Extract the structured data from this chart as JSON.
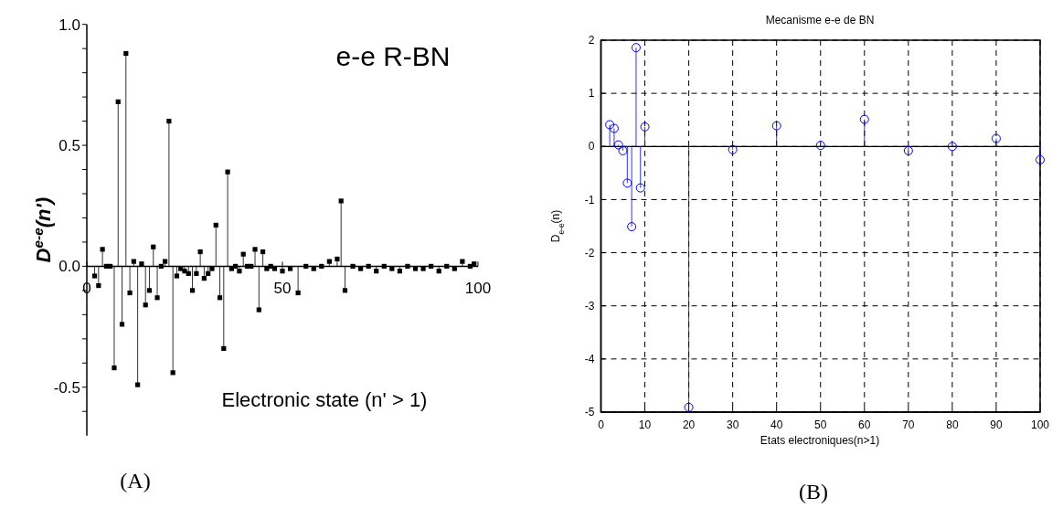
{
  "chart_data": [
    {
      "type": "lollipop",
      "title": "e-e R-BN",
      "xlabel": "Electronic state (n' > 1)",
      "ylabel": "D$^{e-e}$(n')",
      "annotations": [
        "(A)"
      ],
      "marker": "square",
      "grid": false,
      "xlim": [
        0,
        100
      ],
      "xticks": [
        0,
        50,
        100
      ],
      "ylim": [
        -0.7,
        1.0
      ],
      "yticks": [
        {
          "value": -0.6,
          "label": null
        },
        {
          "value": -0.5,
          "label": "-0.5"
        },
        {
          "value": -0.4,
          "label": null
        },
        {
          "value": -0.3,
          "label": null
        },
        {
          "value": -0.2,
          "label": null
        },
        {
          "value": -0.1,
          "label": null
        },
        {
          "value": 0,
          "label": "0.0"
        },
        {
          "value": 0.1,
          "label": null
        },
        {
          "value": 0.2,
          "label": null
        },
        {
          "value": 0.3,
          "label": null
        },
        {
          "value": 0.4,
          "label": null
        },
        {
          "value": 0.5,
          "label": "0.5"
        },
        {
          "value": 0.6,
          "label": null
        },
        {
          "value": 0.7,
          "label": null
        },
        {
          "value": 0.8,
          "label": null
        },
        {
          "value": 0.9,
          "label": null
        },
        {
          "value": 1.0,
          "label": "1.0"
        }
      ],
      "series": [
        {
          "color": "#000000",
          "x": [
            2,
            3,
            4,
            5,
            6,
            7,
            8,
            9,
            10,
            11,
            12,
            13,
            14,
            15,
            16,
            17,
            18,
            19,
            20,
            21,
            22,
            23,
            24,
            25,
            26,
            27,
            28,
            29,
            30,
            31,
            32,
            33,
            34,
            35,
            36,
            37,
            38,
            39,
            40,
            41,
            42,
            43,
            44,
            45,
            46,
            47,
            48,
            50,
            52,
            54,
            56,
            58,
            60,
            62,
            64,
            65,
            66,
            68,
            70,
            72,
            74,
            76,
            78,
            80,
            82,
            84,
            86,
            88,
            90,
            92,
            94,
            96,
            98,
            99
          ],
          "values": [
            -0.04,
            -0.08,
            0.07,
            0.0,
            0.0,
            -0.42,
            0.68,
            -0.24,
            0.88,
            -0.11,
            0.02,
            -0.49,
            0.01,
            -0.16,
            -0.1,
            0.08,
            -0.13,
            0.0,
            0.02,
            0.6,
            -0.44,
            -0.04,
            -0.01,
            -0.02,
            -0.03,
            -0.1,
            -0.03,
            0.06,
            -0.05,
            -0.03,
            -0.01,
            0.17,
            -0.13,
            -0.34,
            0.39,
            -0.01,
            0.0,
            -0.02,
            0.05,
            0.0,
            0.0,
            0.07,
            -0.18,
            0.06,
            -0.01,
            0.0,
            -0.01,
            -0.02,
            -0.01,
            -0.11,
            0.0,
            -0.01,
            0.0,
            0.02,
            0.03,
            0.27,
            -0.1,
            0.0,
            -0.01,
            0.0,
            -0.02,
            0.0,
            -0.01,
            -0.02,
            0.0,
            -0.01,
            -0.01,
            0.0,
            -0.02,
            0.0,
            -0.01,
            0.02,
            0.0,
            0.01
          ]
        }
      ]
    },
    {
      "type": "lollipop",
      "title": "Mecanisme e-e de BN",
      "xlabel": "Etats electroniques(n>1)",
      "ylabel": "D$_{e-e}$(n)",
      "annotations": [
        "(B)"
      ],
      "marker": "circle",
      "grid": true,
      "xlim": [
        0,
        100
      ],
      "xticks": [
        0,
        10,
        20,
        30,
        40,
        50,
        60,
        70,
        80,
        90,
        100
      ],
      "ylim": [
        -5,
        2
      ],
      "yticks": [
        -5,
        -4,
        -3,
        -2,
        -1,
        0,
        1,
        2
      ],
      "series": [
        {
          "color": "#0000ff",
          "x": [
            2,
            3,
            4,
            5,
            6,
            7,
            8,
            9,
            10,
            20,
            30,
            40,
            50,
            60,
            70,
            80,
            90,
            100
          ],
          "values": [
            0.41,
            0.34,
            0.03,
            -0.08,
            -0.69,
            -1.51,
            1.86,
            -0.78,
            0.37,
            -4.91,
            -0.06,
            0.39,
            0.02,
            0.51,
            -0.08,
            0.0,
            0.15,
            -0.25
          ]
        }
      ]
    }
  ]
}
